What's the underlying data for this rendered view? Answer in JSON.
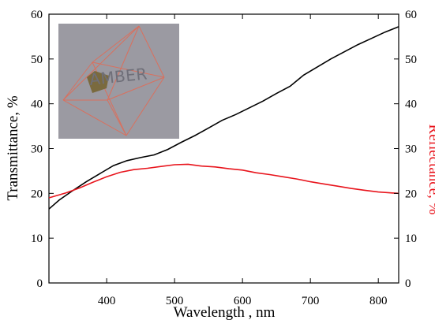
{
  "chart_data": {
    "type": "line",
    "x": {
      "label": "Wavelength , nm",
      "lim": [
        315,
        830
      ],
      "ticks": [
        400,
        500,
        600,
        700,
        800
      ]
    },
    "y_left": {
      "label": "Transmittance, %",
      "lim": [
        0,
        60
      ],
      "ticks": [
        0,
        10,
        20,
        30,
        40,
        50,
        60
      ]
    },
    "y_right": {
      "label": "Reflectance, %",
      "lim": [
        0,
        60
      ],
      "ticks": [
        0,
        10,
        20,
        30,
        40,
        50,
        60
      ],
      "color": "#e8141c"
    },
    "series": [
      {
        "axis": "left",
        "color": "#000000",
        "points": [
          [
            315,
            16.5
          ],
          [
            330,
            18.5
          ],
          [
            350,
            20.6
          ],
          [
            370,
            22.6
          ],
          [
            390,
            24.4
          ],
          [
            410,
            26.2
          ],
          [
            430,
            27.3
          ],
          [
            450,
            28.0
          ],
          [
            470,
            28.6
          ],
          [
            490,
            29.8
          ],
          [
            510,
            31.4
          ],
          [
            530,
            32.9
          ],
          [
            550,
            34.6
          ],
          [
            570,
            36.3
          ],
          [
            590,
            37.6
          ],
          [
            610,
            39.1
          ],
          [
            630,
            40.6
          ],
          [
            650,
            42.3
          ],
          [
            670,
            43.9
          ],
          [
            690,
            46.4
          ],
          [
            710,
            48.2
          ],
          [
            730,
            50.0
          ],
          [
            750,
            51.6
          ],
          [
            770,
            53.2
          ],
          [
            790,
            54.6
          ],
          [
            810,
            56.0
          ],
          [
            830,
            57.2
          ]
        ]
      },
      {
        "axis": "right",
        "color": "#e8141c",
        "points": [
          [
            315,
            19.0
          ],
          [
            340,
            20.1
          ],
          [
            360,
            21.2
          ],
          [
            380,
            22.5
          ],
          [
            400,
            23.7
          ],
          [
            420,
            24.7
          ],
          [
            440,
            25.3
          ],
          [
            460,
            25.6
          ],
          [
            480,
            26.0
          ],
          [
            500,
            26.4
          ],
          [
            520,
            26.5
          ],
          [
            540,
            26.1
          ],
          [
            560,
            25.9
          ],
          [
            580,
            25.5
          ],
          [
            600,
            25.2
          ],
          [
            620,
            24.6
          ],
          [
            640,
            24.2
          ],
          [
            660,
            23.7
          ],
          [
            680,
            23.2
          ],
          [
            700,
            22.6
          ],
          [
            720,
            22.1
          ],
          [
            740,
            21.6
          ],
          [
            760,
            21.1
          ],
          [
            780,
            20.7
          ],
          [
            800,
            20.3
          ],
          [
            820,
            20.1
          ],
          [
            830,
            20.0
          ]
        ]
      }
    ],
    "inset": {
      "text": "AMBER",
      "background": "#9b9aa2",
      "octahedron_color": "#d9705e",
      "chip_color": "#7a6a3e"
    },
    "grid": false
  }
}
